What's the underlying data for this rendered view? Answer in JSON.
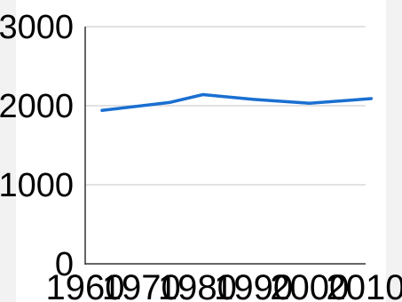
{
  "chart_data": {
    "type": "line",
    "title": "",
    "xlabel": "",
    "ylabel": "",
    "x_ticks": [
      "1960",
      "1970",
      "1980",
      "1990",
      "2000",
      "2010"
    ],
    "y_ticks": [
      "0",
      "1000",
      "2000",
      "3000"
    ],
    "xlim": [
      1960,
      2010
    ],
    "ylim": [
      0,
      3000
    ],
    "grid": true,
    "legend": "none",
    "series": [
      {
        "color": "#1a6fd1",
        "x": [
          1963,
          1975,
          1981,
          1990,
          2000,
          2011
        ],
        "y": [
          1940,
          2040,
          2140,
          2080,
          2030,
          2090
        ]
      }
    ]
  }
}
